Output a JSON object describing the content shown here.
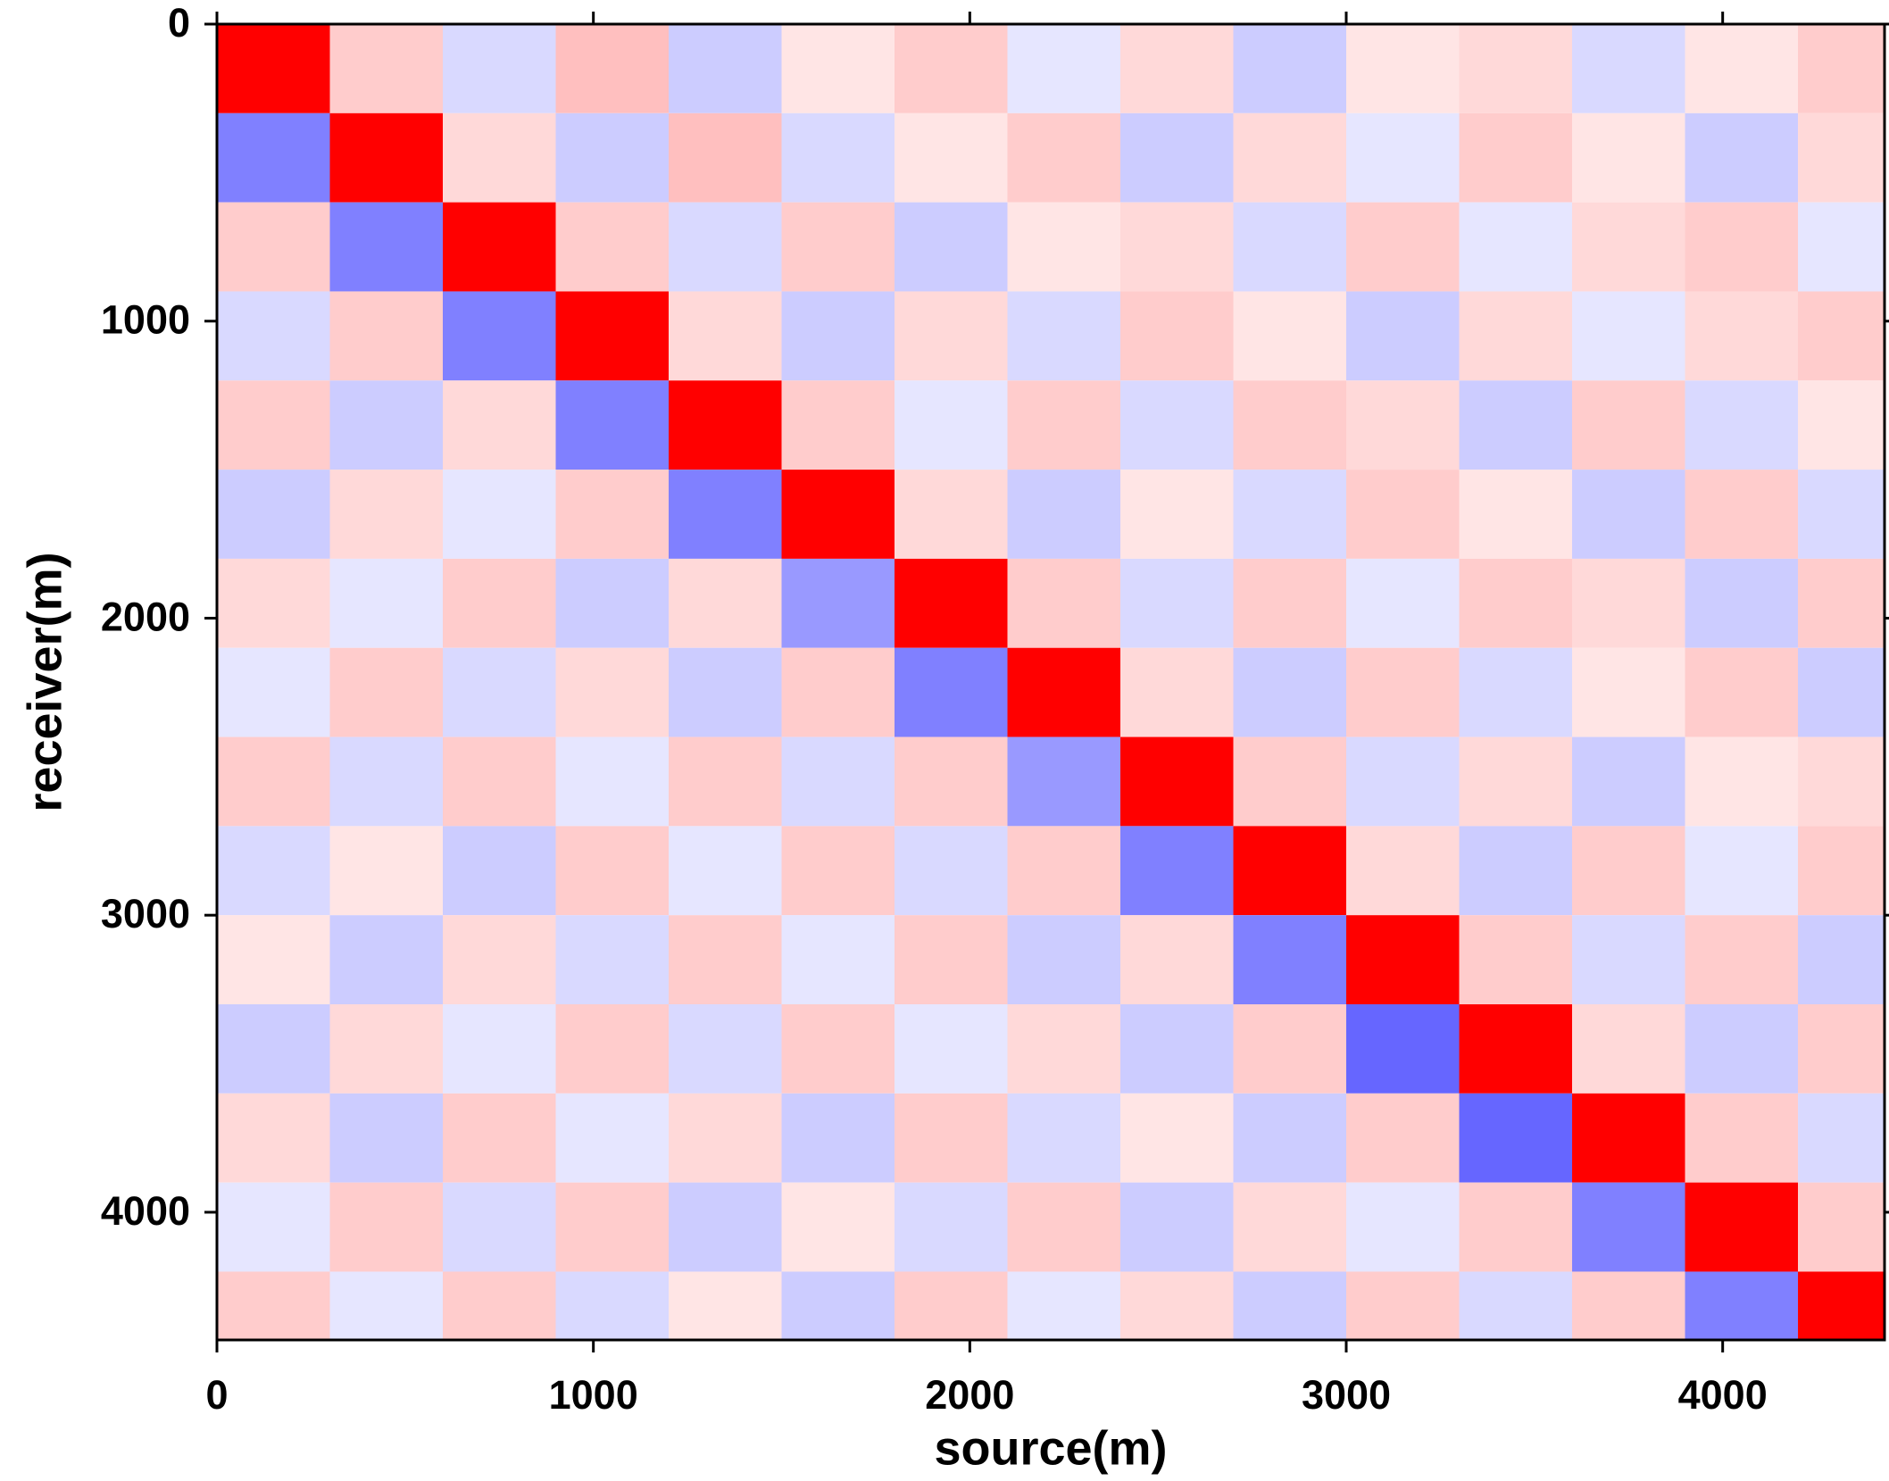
{
  "chart_data": {
    "type": "heatmap",
    "xlabel": "source(m)",
    "ylabel": "receiver(m)",
    "xbins": [
      0,
      300,
      600,
      900,
      1200,
      1500,
      1800,
      2100,
      2400,
      2700,
      3000,
      3300,
      3600,
      3900,
      4200,
      4430
    ],
    "ybins": [
      0,
      300,
      600,
      900,
      1200,
      1500,
      1800,
      2100,
      2400,
      2700,
      3000,
      3300,
      3600,
      3900,
      4200,
      4430
    ],
    "xlim": [
      0,
      4430
    ],
    "ylim": [
      0,
      4430
    ],
    "y_inverted": true,
    "xticks": [
      0,
      1000,
      2000,
      3000,
      4000
    ],
    "yticks": [
      0,
      1000,
      2000,
      3000,
      4000
    ],
    "zlim": [
      -1,
      1
    ],
    "colormap": [
      "#0000ff",
      "#ffffff",
      "#ff0000"
    ],
    "z": [
      [
        1,
        0.2,
        -0.15,
        0.25,
        -0.2,
        0.1,
        0.2,
        -0.1,
        0.15,
        -0.2,
        0.1,
        0.15,
        -0.15,
        0.1,
        0.2
      ],
      [
        -0.5,
        1,
        0.15,
        -0.2,
        0.25,
        -0.15,
        0.1,
        0.2,
        -0.2,
        0.15,
        -0.1,
        0.2,
        0.1,
        -0.2,
        0.15
      ],
      [
        0.2,
        -0.5,
        1,
        0.2,
        -0.15,
        0.2,
        -0.2,
        0.1,
        0.15,
        -0.15,
        0.2,
        -0.1,
        0.15,
        0.2,
        -0.1
      ],
      [
        -0.15,
        0.2,
        -0.5,
        1,
        0.15,
        -0.2,
        0.15,
        -0.15,
        0.2,
        0.1,
        -0.2,
        0.15,
        -0.1,
        0.15,
        0.2
      ],
      [
        0.2,
        -0.2,
        0.15,
        -0.5,
        1,
        0.2,
        -0.1,
        0.2,
        -0.15,
        0.2,
        0.15,
        -0.2,
        0.2,
        -0.15,
        0.1
      ],
      [
        -0.2,
        0.15,
        -0.1,
        0.2,
        -0.5,
        1,
        0.15,
        -0.2,
        0.1,
        -0.15,
        0.2,
        0.1,
        -0.2,
        0.2,
        -0.15
      ],
      [
        0.15,
        -0.1,
        0.2,
        -0.2,
        0.15,
        -0.4,
        1,
        0.2,
        -0.15,
        0.2,
        -0.1,
        0.2,
        0.15,
        -0.2,
        0.2
      ],
      [
        -0.1,
        0.2,
        -0.15,
        0.15,
        -0.2,
        0.2,
        -0.5,
        1,
        0.15,
        -0.2,
        0.2,
        -0.15,
        0.1,
        0.2,
        -0.2
      ],
      [
        0.2,
        -0.15,
        0.2,
        -0.1,
        0.2,
        -0.15,
        0.2,
        -0.4,
        1,
        0.2,
        -0.15,
        0.15,
        -0.2,
        0.1,
        0.15
      ],
      [
        -0.15,
        0.1,
        -0.2,
        0.2,
        -0.1,
        0.2,
        -0.15,
        0.2,
        -0.5,
        1,
        0.15,
        -0.2,
        0.2,
        -0.1,
        0.2
      ],
      [
        0.1,
        -0.2,
        0.15,
        -0.15,
        0.2,
        -0.1,
        0.2,
        -0.2,
        0.15,
        -0.5,
        1,
        0.2,
        -0.15,
        0.2,
        -0.2
      ],
      [
        -0.2,
        0.15,
        -0.1,
        0.2,
        -0.15,
        0.2,
        -0.1,
        0.15,
        -0.2,
        0.2,
        -0.6,
        1,
        0.15,
        -0.2,
        0.2
      ],
      [
        0.15,
        -0.2,
        0.2,
        -0.1,
        0.15,
        -0.2,
        0.2,
        -0.15,
        0.1,
        -0.2,
        0.2,
        -0.6,
        1,
        0.2,
        -0.15
      ],
      [
        -0.1,
        0.2,
        -0.15,
        0.2,
        -0.2,
        0.1,
        -0.15,
        0.2,
        -0.2,
        0.15,
        -0.1,
        0.2,
        -0.5,
        1,
        0.2
      ],
      [
        0.2,
        -0.1,
        0.2,
        -0.15,
        0.1,
        -0.2,
        0.2,
        -0.1,
        0.15,
        -0.2,
        0.2,
        -0.15,
        0.2,
        -0.5,
        1
      ]
    ]
  }
}
